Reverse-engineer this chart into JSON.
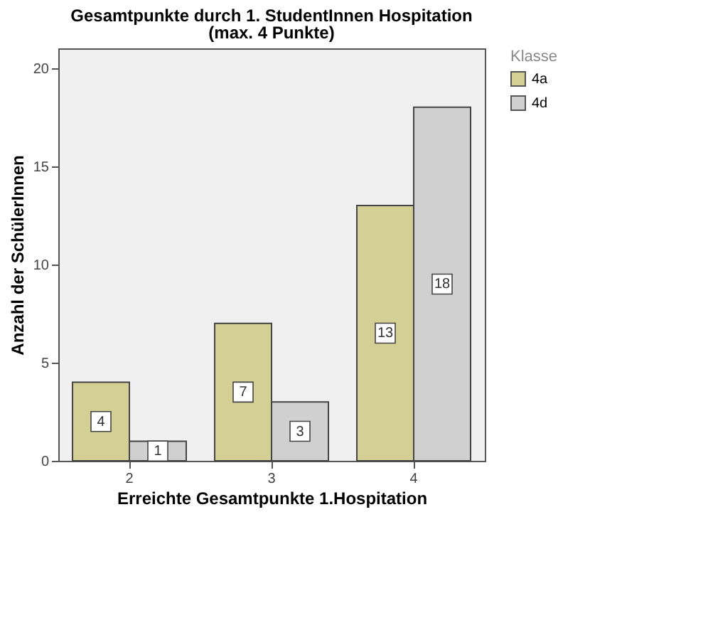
{
  "chart_data": {
    "type": "bar",
    "title": "Gesamtpunkte durch 1. StudentInnen Hospitation",
    "subtitle": "(max. 4 Punkte)",
    "xlabel": "Erreichte Gesamtpunkte 1.Hospitation",
    "ylabel": "Anzahl der SchülerInnen",
    "legend_title": "Klasse",
    "categories": [
      "2",
      "3",
      "4"
    ],
    "series": [
      {
        "name": "4a",
        "color": "#d3cf95",
        "values": [
          4,
          7,
          13
        ]
      },
      {
        "name": "4d",
        "color": "#d0d0d0",
        "values": [
          1,
          3,
          18
        ]
      }
    ],
    "ylim": [
      0,
      21
    ],
    "yticks": [
      0,
      5,
      10,
      15,
      20
    ],
    "grid": false,
    "legend": "top right",
    "data_labels": true
  }
}
